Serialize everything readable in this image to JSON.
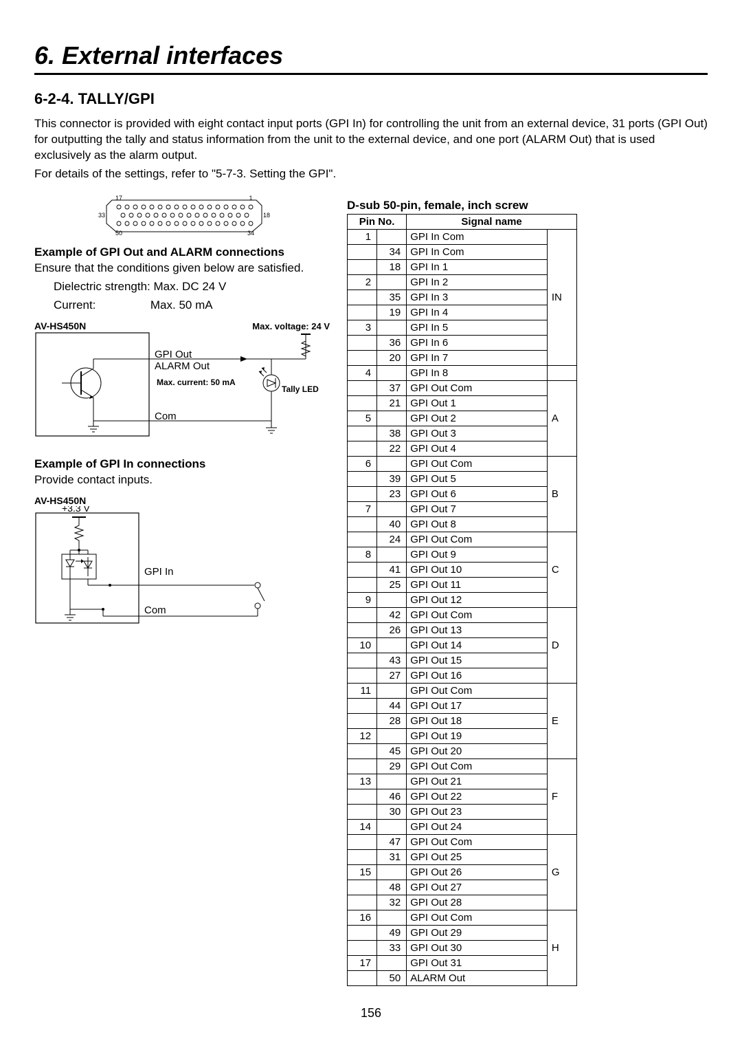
{
  "chapterTitle": "6. External interfaces",
  "sectionTitle": "6-2-4. TALLY/GPI",
  "intro1": "This connector is provided with eight contact input ports (GPI In) for controlling the unit from an external device, 31 ports (GPI Out) for outputting the tally and status information from the unit to the external device, and one port (ALARM Out) that is used exclusively as the alarm output.",
  "intro2": "For details of the settings, refer to \"5-7-3. Setting the GPI\".",
  "connector": {
    "labels": {
      "tl": "17",
      "tr": "1",
      "ml": "33",
      "mr": "18",
      "bl": "50",
      "br": "34"
    }
  },
  "exOut": {
    "title": "Example of GPI Out and ALARM connections",
    "cond": "Ensure that the conditions given below are satisfied.",
    "dielectric": "Dielectric strength: Max. DC 24 V",
    "currentLabel": "Current:",
    "currentVal": "Max. 50 mA",
    "modelLabel": "AV-HS450N",
    "maxVoltage": "Max. voltage: 24 V",
    "gpiOut": "GPI Out",
    "alarmOut": "ALARM Out",
    "maxCurrent": "Max. current: 50 mA",
    "tallyLed": "Tally LED",
    "com": "Com"
  },
  "exIn": {
    "title": "Example of GPI In connections",
    "cond": "Provide contact inputs.",
    "modelLabel": "AV-HS450N",
    "v33": "+3.3 V",
    "gpiIn": "GPI In",
    "com": "Com"
  },
  "tableTitle": "D-sub 50-pin, female, inch screw",
  "headers": {
    "pin": "Pin No.",
    "sig": "Signal name"
  },
  "rows": [
    {
      "a": "1",
      "b": "",
      "sig": "GPI In Com",
      "grp": "IN",
      "gspan": 9
    },
    {
      "a": "",
      "b": "34",
      "sig": "GPI In Com"
    },
    {
      "a": "",
      "b": "18",
      "sig": "GPI In 1"
    },
    {
      "a": "2",
      "b": "",
      "sig": "GPI In 2"
    },
    {
      "a": "",
      "b": "35",
      "sig": "GPI In 3"
    },
    {
      "a": "",
      "b": "19",
      "sig": "GPI In 4"
    },
    {
      "a": "3",
      "b": "",
      "sig": "GPI In 5"
    },
    {
      "a": "",
      "b": "36",
      "sig": "GPI In 6"
    },
    {
      "a": "",
      "b": "20",
      "sig": "GPI In 7"
    },
    {
      "a": "4",
      "b": "",
      "sig": "GPI In 8",
      "grp": "",
      "gspan": 1
    },
    {
      "a": "",
      "b": "37",
      "sig": "GPI Out Com",
      "grp": "A",
      "gspan": 5
    },
    {
      "a": "",
      "b": "21",
      "sig": "GPI Out 1"
    },
    {
      "a": "5",
      "b": "",
      "sig": "GPI Out 2"
    },
    {
      "a": "",
      "b": "38",
      "sig": "GPI Out 3"
    },
    {
      "a": "",
      "b": "22",
      "sig": "GPI Out 4"
    },
    {
      "a": "6",
      "b": "",
      "sig": "GPI Out Com",
      "grp": "B",
      "gspan": 5
    },
    {
      "a": "",
      "b": "39",
      "sig": "GPI Out 5"
    },
    {
      "a": "",
      "b": "23",
      "sig": "GPI Out 6"
    },
    {
      "a": "7",
      "b": "",
      "sig": "GPI Out 7"
    },
    {
      "a": "",
      "b": "40",
      "sig": "GPI Out 8"
    },
    {
      "a": "",
      "b": "24",
      "sig": "GPI Out Com",
      "grp": "C",
      "gspan": 5
    },
    {
      "a": "8",
      "b": "",
      "sig": "GPI Out 9"
    },
    {
      "a": "",
      "b": "41",
      "sig": "GPI Out 10"
    },
    {
      "a": "",
      "b": "25",
      "sig": "GPI Out 11"
    },
    {
      "a": "9",
      "b": "",
      "sig": "GPI Out 12"
    },
    {
      "a": "",
      "b": "42",
      "sig": "GPI Out Com",
      "grp": "D",
      "gspan": 5
    },
    {
      "a": "",
      "b": "26",
      "sig": "GPI Out 13"
    },
    {
      "a": "10",
      "b": "",
      "sig": "GPI Out 14"
    },
    {
      "a": "",
      "b": "43",
      "sig": "GPI Out 15"
    },
    {
      "a": "",
      "b": "27",
      "sig": "GPI Out 16"
    },
    {
      "a": "11",
      "b": "",
      "sig": "GPI Out Com",
      "grp": "E",
      "gspan": 5
    },
    {
      "a": "",
      "b": "44",
      "sig": "GPI Out 17"
    },
    {
      "a": "",
      "b": "28",
      "sig": "GPI Out 18"
    },
    {
      "a": "12",
      "b": "",
      "sig": "GPI Out 19"
    },
    {
      "a": "",
      "b": "45",
      "sig": "GPI Out 20"
    },
    {
      "a": "",
      "b": "29",
      "sig": "GPI Out Com",
      "grp": "F",
      "gspan": 5
    },
    {
      "a": "13",
      "b": "",
      "sig": "GPI Out 21"
    },
    {
      "a": "",
      "b": "46",
      "sig": "GPI Out 22"
    },
    {
      "a": "",
      "b": "30",
      "sig": "GPI Out 23"
    },
    {
      "a": "14",
      "b": "",
      "sig": "GPI Out 24"
    },
    {
      "a": "",
      "b": "47",
      "sig": "GPI Out Com",
      "grp": "G",
      "gspan": 5
    },
    {
      "a": "",
      "b": "31",
      "sig": "GPI Out 25"
    },
    {
      "a": "15",
      "b": "",
      "sig": "GPI Out 26"
    },
    {
      "a": "",
      "b": "48",
      "sig": "GPI Out 27"
    },
    {
      "a": "",
      "b": "32",
      "sig": "GPI Out 28"
    },
    {
      "a": "16",
      "b": "",
      "sig": "GPI Out Com",
      "grp": "H",
      "gspan": 5
    },
    {
      "a": "",
      "b": "49",
      "sig": "GPI Out 29"
    },
    {
      "a": "",
      "b": "33",
      "sig": "GPI Out 30"
    },
    {
      "a": "17",
      "b": "",
      "sig": "GPI Out 31"
    },
    {
      "a": "",
      "b": "50",
      "sig": "ALARM Out"
    }
  ],
  "pageNumber": "156",
  "style": {
    "fontFamily": "Arial, Helvetica, sans-serif",
    "bg": "#ffffff",
    "text": "#000000",
    "chapterFontSize": 36,
    "sectionFontSize": 22,
    "bodyFontSize": 17,
    "tableFontSize": 15,
    "borderColor": "#000000",
    "ruleWidth": 3
  }
}
